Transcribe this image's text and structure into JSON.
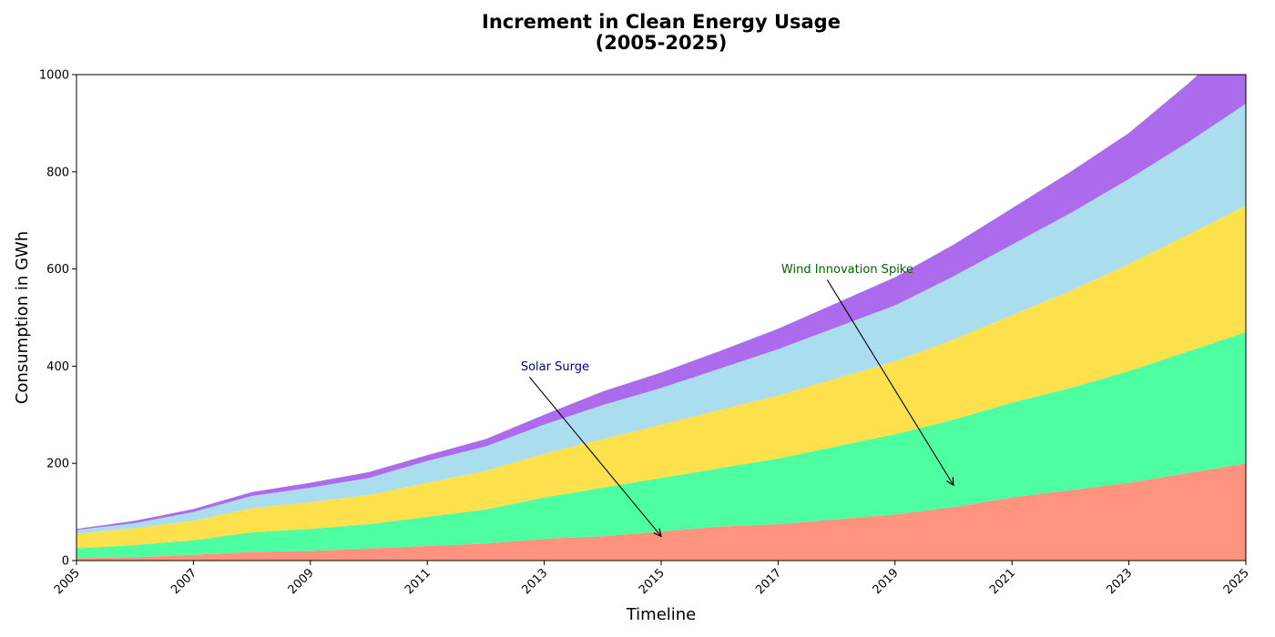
{
  "chart_data": {
    "type": "area",
    "stacked": true,
    "title_line1": "Increment in Clean Energy Usage",
    "title_line2": "(2005-2025)",
    "xlabel": "Timeline",
    "ylabel": "Consumption in GWh",
    "xlim": [
      2005,
      2025
    ],
    "ylim": [
      0,
      1000
    ],
    "xticks": [
      "2005",
      "2007",
      "2009",
      "2011",
      "2013",
      "2015",
      "2017",
      "2019",
      "2021",
      "2023",
      "2025"
    ],
    "yticks": [
      "0",
      "200",
      "400",
      "600",
      "800",
      "1000"
    ],
    "grid": false,
    "legend": "none",
    "x": [
      2005,
      2006,
      2007,
      2008,
      2009,
      2010,
      2011,
      2012,
      2013,
      2014,
      2015,
      2016,
      2017,
      2018,
      2019,
      2020,
      2021,
      2022,
      2023,
      2024,
      2025
    ],
    "series": [
      {
        "color": "#ff9380",
        "values": [
          5,
          7,
          12,
          18,
          20,
          25,
          30,
          35,
          45,
          50,
          60,
          70,
          75,
          85,
          95,
          110,
          130,
          145,
          160,
          180,
          200
        ]
      },
      {
        "color": "#4dffa1",
        "values": [
          20,
          25,
          30,
          40,
          45,
          50,
          60,
          70,
          85,
          100,
          110,
          120,
          135,
          150,
          165,
          180,
          195,
          210,
          230,
          250,
          270
        ]
      },
      {
        "color": "#ffe14d",
        "values": [
          30,
          35,
          40,
          50,
          55,
          60,
          70,
          80,
          90,
          100,
          110,
          120,
          130,
          140,
          150,
          165,
          180,
          200,
          220,
          240,
          260
        ]
      },
      {
        "color": "#aadeee",
        "values": [
          8,
          10,
          18,
          25,
          30,
          35,
          45,
          50,
          60,
          70,
          75,
          85,
          95,
          105,
          115,
          130,
          145,
          160,
          175,
          190,
          210
        ]
      },
      {
        "color": "#ac6bec",
        "values": [
          2,
          5,
          6,
          8,
          10,
          12,
          12,
          15,
          20,
          28,
          32,
          36,
          42,
          50,
          58,
          65,
          75,
          85,
          95,
          120,
          150
        ]
      }
    ],
    "annotations": [
      {
        "text": "Solar Surge",
        "color": "#00008b",
        "text_xy": [
          2012,
          400
        ],
        "point_xy": [
          2015,
          50
        ]
      },
      {
        "text": "Wind Innovation Spike",
        "color": "#006400",
        "text_xy": [
          2017,
          600
        ],
        "point_xy": [
          2020,
          155
        ]
      }
    ]
  }
}
